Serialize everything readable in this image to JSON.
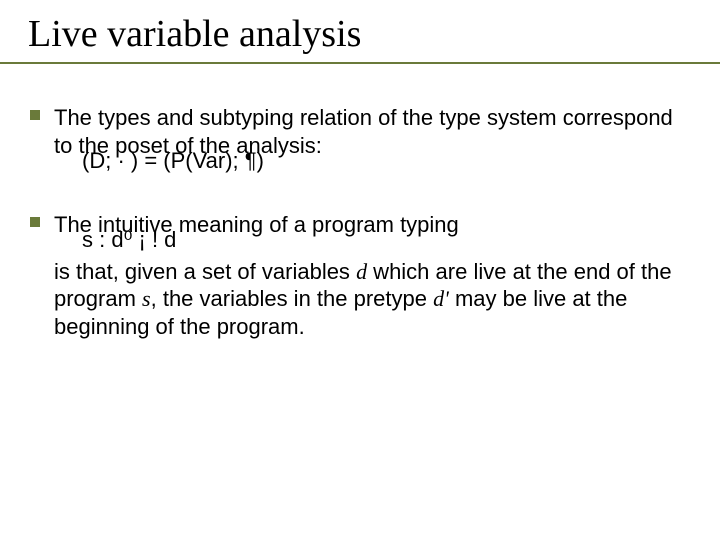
{
  "title": "Live variable analysis",
  "colors": {
    "accent": "#6a7a3a",
    "text": "#000000",
    "background": "#ffffff"
  },
  "typography": {
    "title_font": "Times New Roman",
    "title_size_pt": 38,
    "body_font": "Arial",
    "body_size_pt": 22
  },
  "bullets": [
    {
      "text": "The types and subtyping relation of the type system correspond to the poset of the analysis:",
      "sub": "(D; · ) = (P(Var); ¶)"
    },
    {
      "text": "The intuitive meaning of a program typing",
      "sub": "s : d⁰ ¡ !  d",
      "follow_parts": {
        "p1": "is that, given a set of variables ",
        "d1": "d",
        "p2": " which are live at the end of the program ",
        "s": "s",
        "p3": ", the variables in the pretype ",
        "d2": "d'",
        "p4": " may be live at the beginning of the program."
      }
    }
  ]
}
